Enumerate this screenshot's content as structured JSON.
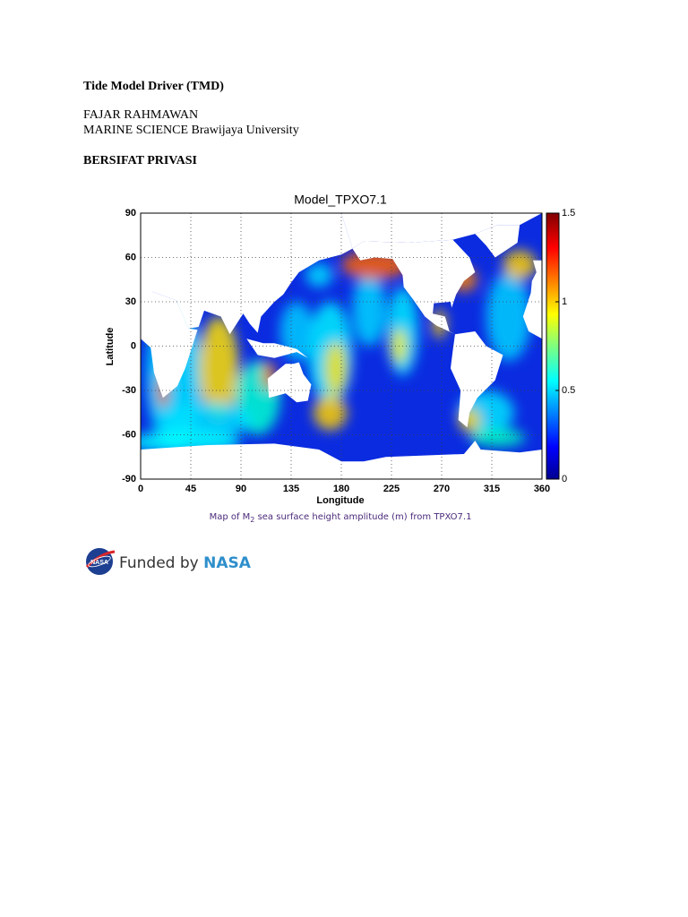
{
  "document": {
    "title": "Tide Model Driver (TMD)",
    "author": "FAJAR RAHMAWAN",
    "affiliation": "MARINE SCIENCE Brawijaya University",
    "note": "BERSIFAT PRIVASI"
  },
  "figure": {
    "title": "Model_TPXO7.1",
    "xlabel": "Longitude",
    "ylabel": "Latitude",
    "xlim": [
      0,
      360
    ],
    "ylim": [
      -90,
      90
    ],
    "xticks": [
      0,
      45,
      90,
      135,
      180,
      225,
      270,
      315,
      360
    ],
    "yticks": [
      -90,
      -60,
      -30,
      0,
      30,
      60,
      90
    ],
    "colorbar": {
      "lim": [
        0,
        1.5
      ],
      "ticks": [
        0,
        0.5,
        1,
        1.5
      ]
    },
    "caption": {
      "before": "Map of M",
      "subscript": "2",
      "after": " sea surface height amplitude (m) from TPXO7.1"
    }
  },
  "footer": {
    "logo": "NASA",
    "funded": "Funded by",
    "agency": "NASA"
  }
}
